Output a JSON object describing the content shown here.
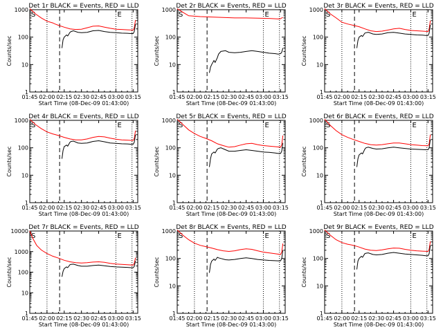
{
  "chart_data": [
    {
      "type": "line",
      "title": "Det 1r BLACK = Events, RED = LLD",
      "xlabel": "Start Time (08-Dec-09 01:43:00)",
      "ylabel": "Counts/sec",
      "xticks": [
        "01:45",
        "02:00",
        "02:15",
        "02:30",
        "02:45",
        "03:00",
        "03:15"
      ],
      "yticks": [
        "1",
        "10",
        "100",
        "1000"
      ],
      "ylim": [
        1,
        1000
      ],
      "yscale": "log",
      "markers": [
        "S",
        "E"
      ],
      "series": [
        {
          "color": "#ff0000",
          "x": [
            0,
            5,
            10,
            15,
            20,
            22,
            25,
            30,
            35,
            40,
            45,
            50,
            55,
            60,
            65,
            70,
            75,
            80,
            85,
            90,
            91,
            92
          ],
          "y": [
            1100,
            700,
            500,
            380,
            330,
            300,
            270,
            230,
            200,
            190,
            195,
            220,
            250,
            255,
            230,
            210,
            195,
            190,
            185,
            180,
            220,
            420
          ]
        },
        {
          "color": "#000000",
          "x": [
            28,
            29,
            30,
            32,
            33,
            35,
            36,
            38,
            42,
            45,
            50,
            55,
            60,
            65,
            70,
            75,
            80,
            85,
            88,
            90,
            91,
            92
          ],
          "y": [
            40,
            80,
            100,
            120,
            110,
            150,
            160,
            170,
            150,
            145,
            150,
            170,
            175,
            160,
            150,
            145,
            140,
            138,
            135,
            135,
            160,
            300
          ]
        }
      ]
    },
    {
      "type": "line",
      "title": "Det 2r BLACK = Events, RED = LLD",
      "xlabel": "Start Time (08-Dec-09 01:43:00)",
      "ylabel": "Counts/sec",
      "xticks": [
        "01:45",
        "02:00",
        "02:15",
        "02:30",
        "02:45",
        "03:00",
        "03:15"
      ],
      "yticks": [
        "1",
        "10",
        "100",
        "1000"
      ],
      "ylim": [
        1,
        1000
      ],
      "yscale": "log",
      "markers": [
        "S",
        "E"
      ],
      "series": [
        {
          "color": "#ff0000",
          "x": [
            0,
            5,
            10,
            20,
            30,
            40,
            50,
            60,
            70,
            80,
            88,
            90,
            91,
            92
          ],
          "y": [
            1100,
            800,
            600,
            560,
            540,
            520,
            500,
            500,
            490,
            480,
            460,
            470,
            500,
            520
          ]
        },
        {
          "color": "#000000",
          "x": [
            28,
            29,
            30,
            32,
            33,
            35,
            36,
            38,
            42,
            45,
            50,
            55,
            60,
            65,
            70,
            75,
            80,
            85,
            88,
            90,
            91,
            92
          ],
          "y": [
            5,
            8,
            10,
            14,
            12,
            18,
            24,
            30,
            32,
            28,
            27,
            28,
            30,
            32,
            30,
            28,
            26,
            25,
            24,
            25,
            28,
            40
          ]
        }
      ]
    },
    {
      "type": "line",
      "title": "Det 3r BLACK = Events, RED = LLD",
      "xlabel": "Start Time (08-Dec-09 01:43:00)",
      "ylabel": "Counts/sec",
      "xticks": [
        "01:45",
        "02:00",
        "02:15",
        "02:30",
        "02:45",
        "03:00",
        "03:15"
      ],
      "yticks": [
        "1",
        "10",
        "100",
        "1000"
      ],
      "ylim": [
        1,
        1000
      ],
      "yscale": "log",
      "markers": [
        "S",
        "E"
      ],
      "series": [
        {
          "color": "#ff0000",
          "x": [
            0,
            5,
            10,
            15,
            20,
            25,
            30,
            35,
            40,
            45,
            50,
            55,
            60,
            65,
            70,
            75,
            80,
            85,
            90,
            91,
            92
          ],
          "y": [
            1100,
            700,
            500,
            350,
            300,
            270,
            240,
            200,
            170,
            160,
            165,
            180,
            200,
            210,
            190,
            175,
            170,
            165,
            160,
            200,
            400
          ]
        },
        {
          "color": "#000000",
          "x": [
            28,
            29,
            30,
            32,
            33,
            35,
            36,
            38,
            42,
            45,
            50,
            55,
            60,
            65,
            70,
            75,
            80,
            85,
            88,
            90,
            91,
            92
          ],
          "y": [
            40,
            75,
            100,
            115,
            105,
            140,
            145,
            150,
            130,
            125,
            130,
            145,
            150,
            140,
            130,
            125,
            120,
            118,
            115,
            115,
            140,
            280
          ]
        }
      ]
    },
    {
      "type": "line",
      "title": "Det 4r BLACK = Events, RED = LLD",
      "xlabel": "Start Time (08-Dec-09 01:43:00)",
      "ylabel": "Counts/sec",
      "xticks": [
        "01:45",
        "02:00",
        "02:15",
        "02:30",
        "02:45",
        "03:00",
        "03:15"
      ],
      "yticks": [
        "1",
        "10",
        "100",
        "1000"
      ],
      "ylim": [
        1,
        1000
      ],
      "yscale": "log",
      "markers": [
        "S",
        "E"
      ],
      "series": [
        {
          "color": "#ff0000",
          "x": [
            0,
            5,
            10,
            15,
            20,
            25,
            30,
            35,
            40,
            45,
            50,
            55,
            60,
            65,
            70,
            75,
            80,
            85,
            90,
            91,
            92
          ],
          "y": [
            1100,
            700,
            500,
            380,
            320,
            280,
            240,
            210,
            195,
            195,
            210,
            240,
            260,
            250,
            225,
            205,
            195,
            190,
            185,
            220,
            420
          ]
        },
        {
          "color": "#000000",
          "x": [
            28,
            29,
            30,
            32,
            33,
            35,
            36,
            38,
            42,
            45,
            50,
            55,
            60,
            65,
            70,
            75,
            80,
            85,
            88,
            90,
            91,
            92
          ],
          "y": [
            40,
            80,
            110,
            125,
            115,
            160,
            170,
            175,
            150,
            145,
            150,
            170,
            180,
            165,
            150,
            145,
            140,
            138,
            135,
            135,
            160,
            300
          ]
        }
      ]
    },
    {
      "type": "line",
      "title": "Det 5r BLACK = Events, RED = LLD",
      "xlabel": "Start Time (08-Dec-09 01:43:00)",
      "ylabel": "Counts/sec",
      "xticks": [
        "01:45",
        "02:00",
        "02:15",
        "02:30",
        "02:45",
        "03:00",
        "03:15"
      ],
      "yticks": [
        "1",
        "10",
        "100",
        "1000"
      ],
      "ylim": [
        1,
        1000
      ],
      "yscale": "log",
      "markers": [
        "S",
        "E"
      ],
      "series": [
        {
          "color": "#ff0000",
          "x": [
            0,
            5,
            10,
            15,
            20,
            25,
            30,
            35,
            40,
            45,
            50,
            55,
            60,
            65,
            70,
            75,
            80,
            85,
            90,
            91,
            92
          ],
          "y": [
            1100,
            700,
            450,
            330,
            260,
            220,
            180,
            140,
            120,
            105,
            110,
            125,
            140,
            145,
            130,
            120,
            115,
            110,
            105,
            130,
            280
          ]
        },
        {
          "color": "#000000",
          "x": [
            28,
            29,
            30,
            32,
            33,
            35,
            36,
            38,
            42,
            45,
            50,
            55,
            60,
            65,
            70,
            75,
            80,
            85,
            88,
            90,
            91,
            92
          ],
          "y": [
            20,
            40,
            60,
            70,
            65,
            90,
            95,
            100,
            85,
            75,
            75,
            80,
            85,
            80,
            75,
            70,
            68,
            65,
            62,
            62,
            75,
            150
          ]
        }
      ]
    },
    {
      "type": "line",
      "title": "Det 6r BLACK = Events, RED = LLD",
      "xlabel": "Start Time (08-Dec-09 01:43:00)",
      "ylabel": "Counts/sec",
      "xticks": [
        "01:45",
        "02:00",
        "02:15",
        "02:30",
        "02:45",
        "03:00",
        "03:15"
      ],
      "yticks": [
        "1",
        "10",
        "100",
        "1000"
      ],
      "ylim": [
        1,
        1000
      ],
      "yscale": "log",
      "markers": [
        "S",
        "E"
      ],
      "series": [
        {
          "color": "#ff0000",
          "x": [
            0,
            5,
            10,
            15,
            20,
            25,
            30,
            35,
            40,
            45,
            50,
            55,
            60,
            65,
            70,
            75,
            80,
            85,
            90,
            91,
            92
          ],
          "y": [
            1100,
            650,
            420,
            300,
            240,
            200,
            170,
            145,
            130,
            125,
            130,
            140,
            150,
            150,
            140,
            130,
            125,
            120,
            118,
            140,
            300
          ]
        },
        {
          "color": "#000000",
          "x": [
            28,
            29,
            30,
            32,
            33,
            35,
            36,
            38,
            42,
            45,
            50,
            55,
            60,
            65,
            70,
            75,
            80,
            85,
            88,
            90,
            91,
            92
          ],
          "y": [
            20,
            40,
            55,
            65,
            60,
            90,
            100,
            105,
            95,
            90,
            92,
            100,
            105,
            100,
            95,
            90,
            88,
            86,
            85,
            85,
            100,
            200
          ]
        }
      ]
    },
    {
      "type": "line",
      "title": "Det 7r BLACK = Events, RED = LLD",
      "xlabel": "Start Time (08-Dec-09 01:43:00)",
      "ylabel": "Counts/sec",
      "xticks": [
        "01:45",
        "02:00",
        "02:15",
        "02:30",
        "02:45",
        "03:00",
        "03:15"
      ],
      "yticks": [
        "1",
        "10",
        "100",
        "1000",
        "10000"
      ],
      "ylim": [
        1,
        10000
      ],
      "yscale": "log",
      "markers": [
        "S",
        "E"
      ],
      "series": [
        {
          "color": "#ff0000",
          "x": [
            0,
            3,
            6,
            10,
            15,
            20,
            25,
            30,
            35,
            40,
            45,
            50,
            55,
            60,
            65,
            70,
            75,
            80,
            85,
            90,
            91,
            92
          ],
          "y": [
            10000,
            4000,
            2000,
            1200,
            800,
            600,
            480,
            380,
            320,
            290,
            280,
            290,
            310,
            320,
            300,
            270,
            250,
            240,
            230,
            220,
            270,
            500
          ]
        },
        {
          "color": "#000000",
          "x": [
            28,
            29,
            30,
            32,
            33,
            35,
            36,
            38,
            42,
            45,
            50,
            55,
            60,
            65,
            70,
            75,
            80,
            85,
            88,
            90,
            91,
            92
          ],
          "y": [
            60,
            110,
            150,
            180,
            165,
            230,
            240,
            245,
            210,
            195,
            195,
            210,
            220,
            205,
            190,
            180,
            175,
            170,
            165,
            165,
            190,
            350
          ]
        }
      ]
    },
    {
      "type": "line",
      "title": "Det 8r BLACK = Events, RED = LLD",
      "xlabel": "Start Time (08-Dec-09 01:43:00)",
      "ylabel": "Counts/sec",
      "xticks": [
        "01:45",
        "02:00",
        "02:15",
        "02:30",
        "02:45",
        "03:00",
        "03:15"
      ],
      "yticks": [
        "1",
        "10",
        "100",
        "1000"
      ],
      "ylim": [
        1,
        1000
      ],
      "yscale": "log",
      "markers": [
        "S",
        "E"
      ],
      "series": [
        {
          "color": "#ff0000",
          "x": [
            0,
            5,
            10,
            15,
            20,
            25,
            30,
            35,
            40,
            45,
            50,
            55,
            60,
            65,
            70,
            75,
            80,
            85,
            90,
            91,
            92
          ],
          "y": [
            1100,
            700,
            480,
            360,
            300,
            270,
            240,
            210,
            190,
            180,
            190,
            210,
            225,
            215,
            190,
            170,
            160,
            150,
            140,
            170,
            350
          ]
        },
        {
          "color": "#000000",
          "x": [
            28,
            29,
            30,
            32,
            33,
            35,
            36,
            38,
            42,
            45,
            50,
            55,
            60,
            65,
            70,
            75,
            80,
            85,
            88,
            90,
            91,
            92
          ],
          "y": [
            30,
            60,
            80,
            95,
            85,
            110,
            105,
            100,
            90,
            88,
            92,
            100,
            105,
            100,
            92,
            88,
            85,
            83,
            82,
            82,
            100,
            200
          ]
        }
      ]
    },
    {
      "type": "line",
      "title": "Det 9r BLACK = Events, RED = LLD",
      "xlabel": "Start Time (08-Dec-09 01:43:00)",
      "ylabel": "Counts/sec",
      "xticks": [
        "01:45",
        "02:00",
        "02:15",
        "02:30",
        "02:45",
        "03:00",
        "03:15"
      ],
      "yticks": [
        "1",
        "10",
        "100",
        "1000"
      ],
      "ylim": [
        1,
        1000
      ],
      "yscale": "log",
      "markers": [
        "S",
        "E"
      ],
      "series": [
        {
          "color": "#ff0000",
          "x": [
            0,
            5,
            10,
            15,
            20,
            25,
            30,
            35,
            40,
            45,
            50,
            55,
            60,
            65,
            70,
            75,
            80,
            85,
            90,
            91,
            92
          ],
          "y": [
            1100,
            700,
            480,
            380,
            330,
            300,
            260,
            220,
            200,
            195,
            205,
            225,
            240,
            235,
            215,
            200,
            190,
            185,
            180,
            215,
            420
          ]
        },
        {
          "color": "#000000",
          "x": [
            28,
            29,
            30,
            32,
            33,
            35,
            36,
            38,
            42,
            45,
            50,
            55,
            60,
            65,
            70,
            75,
            80,
            85,
            88,
            90,
            91,
            92
          ],
          "y": [
            40,
            80,
            100,
            120,
            110,
            150,
            155,
            160,
            140,
            135,
            140,
            155,
            165,
            155,
            145,
            140,
            135,
            130,
            125,
            125,
            150,
            300
          ]
        }
      ]
    }
  ]
}
